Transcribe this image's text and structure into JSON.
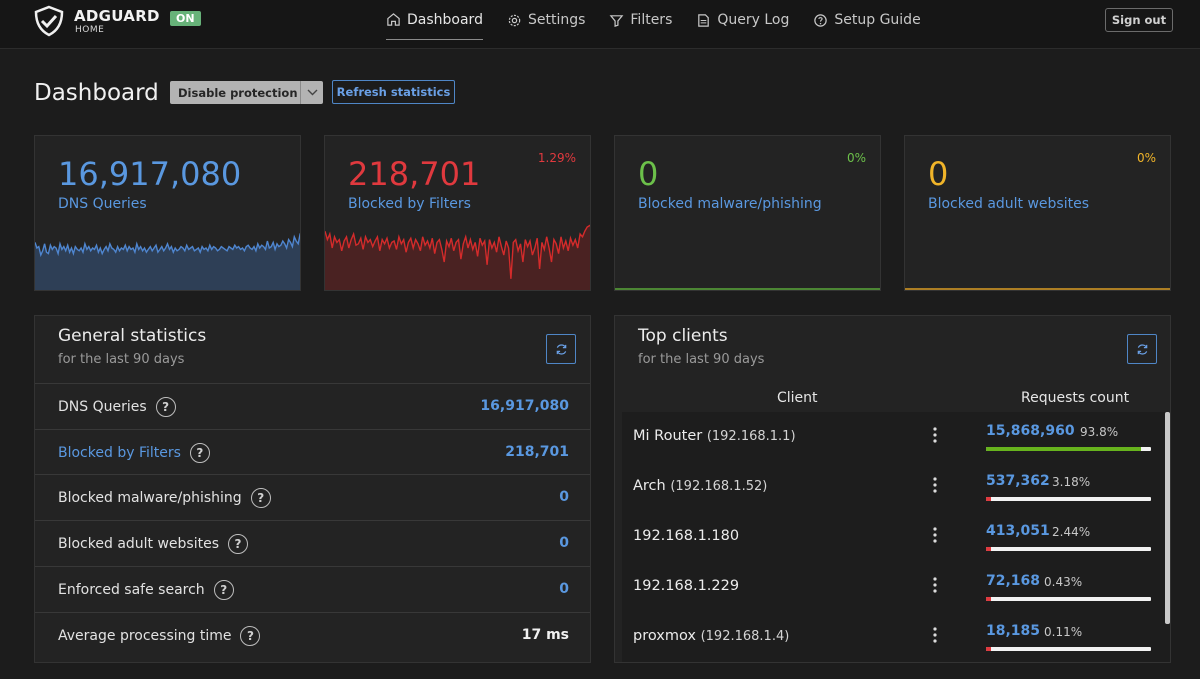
{
  "header": {
    "brand": "ADGUARD",
    "brand_sub": "HOME",
    "status_badge": "ON",
    "nav": [
      {
        "label": "Dashboard",
        "icon": "home-icon"
      },
      {
        "label": "Settings",
        "icon": "gear-icon"
      },
      {
        "label": "Filters",
        "icon": "filter-icon"
      },
      {
        "label": "Query Log",
        "icon": "document-icon"
      },
      {
        "label": "Setup Guide",
        "icon": "help-circle-icon"
      }
    ],
    "sign_out": "Sign out"
  },
  "page": {
    "title": "Dashboard",
    "disable_button": "Disable protection",
    "refresh_button": "Refresh statistics"
  },
  "cards": {
    "dns": {
      "value": "16,917,080",
      "label": "DNS Queries",
      "color": "#5a98e0"
    },
    "blocked": {
      "value": "218,701",
      "label": "Blocked by Filters",
      "percent": "1.29%",
      "color": "#e0393e"
    },
    "malware": {
      "value": "0",
      "label": "Blocked malware/phishing",
      "percent": "0%",
      "color": "#6cc04a"
    },
    "adult": {
      "value": "0",
      "label": "Blocked adult websites",
      "percent": "0%",
      "color": "#f0b429"
    }
  },
  "sparklines": {
    "dns": [
      34,
      30,
      31,
      25,
      28,
      33,
      27,
      26,
      32,
      29,
      31,
      30,
      26,
      33,
      29,
      31,
      28,
      32,
      27,
      30,
      26,
      31,
      29,
      28,
      30,
      27,
      33,
      29,
      31,
      28,
      30,
      29,
      32,
      27,
      30,
      26,
      29,
      31,
      28,
      33,
      30,
      29,
      27,
      31,
      28,
      30,
      29,
      32,
      28,
      31,
      29,
      30,
      27,
      33,
      29,
      31,
      28,
      30,
      27,
      29,
      31,
      28,
      30,
      32,
      27,
      29,
      31,
      28,
      30,
      33,
      29,
      31,
      27,
      30,
      28,
      29,
      31,
      30,
      28,
      32,
      29,
      30,
      31,
      28,
      29,
      30,
      27,
      31,
      29,
      30,
      28,
      32,
      29,
      31,
      30,
      28,
      29,
      31,
      30,
      29,
      28,
      31,
      30,
      29,
      32,
      30,
      31,
      29,
      30,
      28,
      31,
      32,
      30,
      29,
      31,
      28,
      33,
      30,
      32,
      31,
      29,
      35,
      30,
      31,
      34,
      29,
      33,
      31,
      32,
      35,
      33,
      30,
      36,
      34,
      31,
      38,
      35,
      33,
      40,
      42
    ],
    "blocked": [
      42,
      36,
      40,
      30,
      38,
      34,
      36,
      28,
      35,
      38,
      30,
      36,
      40,
      32,
      33,
      37,
      29,
      38,
      34,
      36,
      31,
      35,
      38,
      28,
      36,
      33,
      37,
      30,
      34,
      35,
      29,
      38,
      33,
      36,
      27,
      34,
      37,
      30,
      36,
      33,
      28,
      38,
      32,
      35,
      30,
      37,
      26,
      34,
      36,
      29,
      20,
      35,
      31,
      37,
      28,
      34,
      36,
      22,
      33,
      38,
      30,
      36,
      29,
      34,
      24,
      37,
      32,
      35,
      18,
      36,
      30,
      34,
      27,
      38,
      31,
      25,
      35,
      30,
      8,
      34,
      36,
      28,
      33,
      20,
      36,
      31,
      35,
      25,
      30,
      37,
      15,
      34,
      29,
      38,
      30,
      20,
      36,
      33,
      26,
      38,
      30,
      35,
      28,
      37,
      32,
      36,
      30,
      40,
      38,
      42,
      45,
      46,
      47
    ],
    "malware": [],
    "adult": []
  },
  "general": {
    "title": "General statistics",
    "subtitle": "for the last 90 days",
    "rows": [
      {
        "label": "DNS Queries",
        "value": "16,917,080"
      },
      {
        "label": "Blocked by Filters",
        "value": "218,701"
      },
      {
        "label": "Blocked malware/phishing",
        "value": "0"
      },
      {
        "label": "Blocked adult websites",
        "value": "0"
      },
      {
        "label": "Enforced safe search",
        "value": "0"
      },
      {
        "label": "Average processing time",
        "value": "17 ms"
      }
    ]
  },
  "clients": {
    "title": "Top clients",
    "subtitle": "for the last 90 days",
    "col_client": "Client",
    "col_requests": "Requests count",
    "rows": [
      {
        "name": "Mi Router",
        "ip": "(192.168.1.1)",
        "count": "15,868,960",
        "percent": "93.8%",
        "fraction": 0.938,
        "bar_color": "#67b31d"
      },
      {
        "name": "Arch",
        "ip": "(192.168.1.52)",
        "count": "537,362",
        "percent": "3.18%",
        "fraction": 0.0318,
        "bar_color": "#e0393e"
      },
      {
        "name": "192.168.1.180",
        "ip": "",
        "count": "413,051",
        "percent": "2.44%",
        "fraction": 0.0244,
        "bar_color": "#e0393e"
      },
      {
        "name": "192.168.1.229",
        "ip": "",
        "count": "72,168",
        "percent": "0.43%",
        "fraction": 0.0043,
        "bar_color": "#e0393e"
      },
      {
        "name": "proxmox",
        "ip": "(192.168.1.4)",
        "count": "18,185",
        "percent": "0.11%",
        "fraction": 0.0011,
        "bar_color": "#e0393e"
      }
    ]
  }
}
